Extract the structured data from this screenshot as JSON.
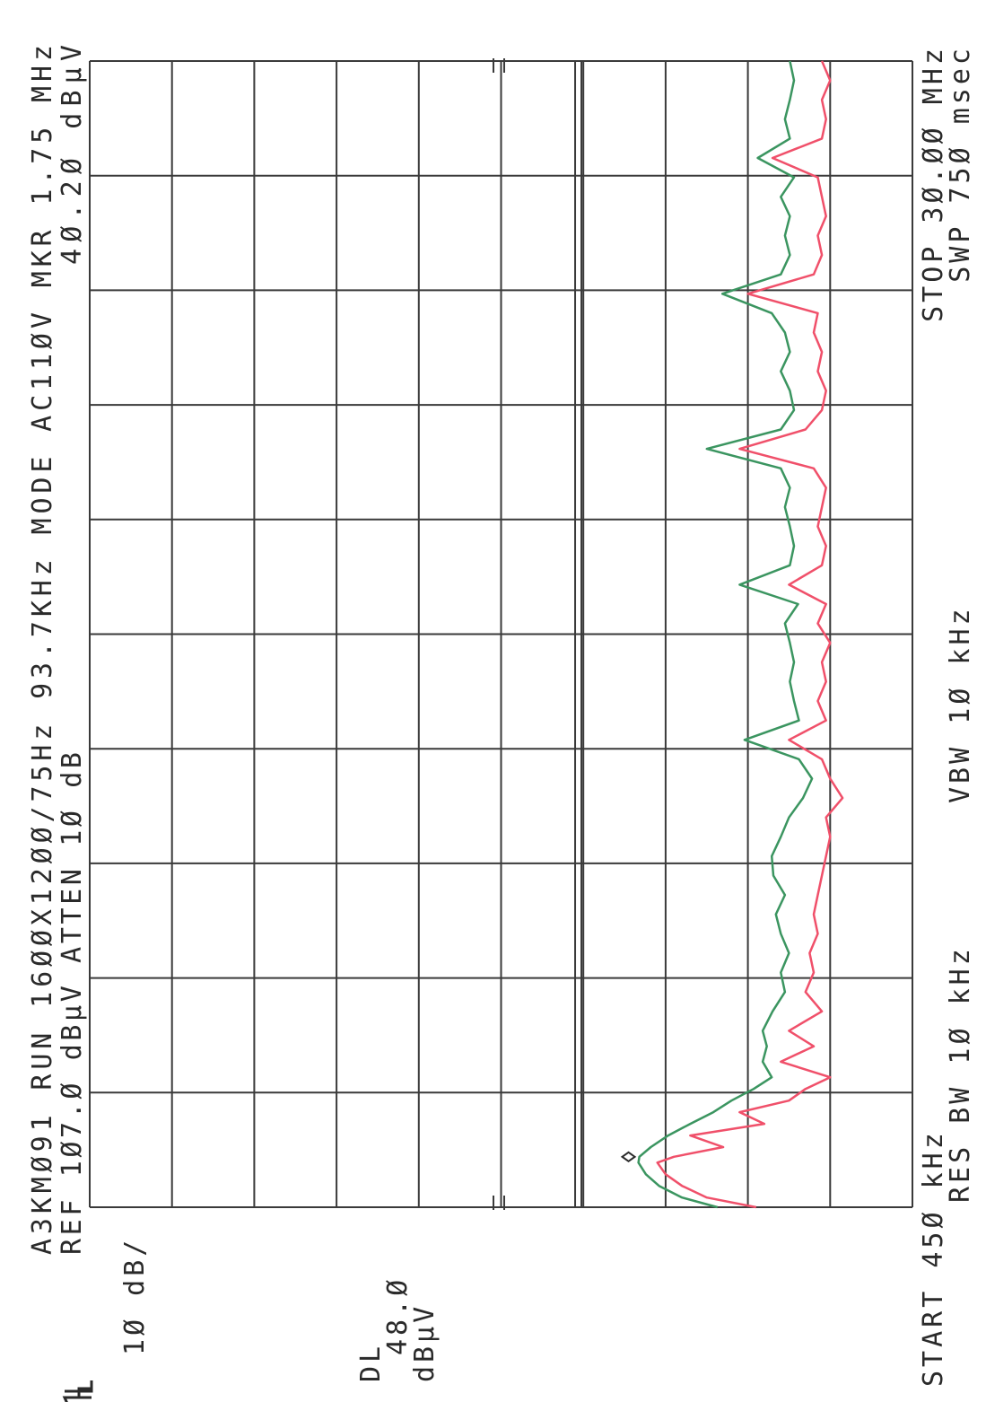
{
  "chart_data": {
    "type": "line",
    "title": "A3KMØ91 RUN 16ØØX12ØØ/75Hz 93.7KHz MODE AC11ØV MKR 1.75 MHz",
    "subtitle": "REF 1Ø7.Ø dBµV ATTEN 1Ø dB",
    "marker_label": "4Ø.2Ø dBµV",
    "annotations": [
      "1Ø dB/",
      "DL",
      "48.Ø",
      "dBµV",
      "START 45Ø kHz",
      "STOP 3Ø.ØØ MHz",
      "RES BW 1Ø kHz",
      "VBW 1Ø kHz",
      "SWP 75Ø msec"
    ],
    "xlim": [
      0.45,
      30
    ],
    "ylim": [
      7,
      107
    ],
    "grid": {
      "x_divisions": 10,
      "y_divisions": 10
    },
    "display_line": 48,
    "marker": {
      "x": 1.75,
      "y": 40.2
    },
    "x": [
      0.45,
      0.7,
      1.0,
      1.3,
      1.6,
      1.75,
      2.0,
      2.3,
      2.6,
      2.9,
      3.2,
      3.5,
      3.8,
      4.2,
      4.6,
      5.0,
      5.5,
      6.0,
      6.5,
      7.0,
      7.5,
      8.0,
      8.5,
      9.0,
      9.5,
      10.0,
      10.5,
      11.0,
      11.5,
      12.0,
      12.5,
      13.0,
      13.5,
      14.0,
      14.5,
      15.0,
      15.5,
      16.0,
      16.5,
      17.0,
      17.5,
      18.0,
      18.5,
      19.0,
      19.5,
      20.0,
      20.5,
      21.0,
      21.5,
      22.0,
      22.5,
      23.0,
      23.5,
      24.0,
      24.5,
      25.0,
      25.5,
      26.0,
      26.5,
      27.0,
      27.5,
      28.0,
      28.5,
      29.0,
      29.5,
      30.0
    ],
    "series": [
      {
        "color": "#3b9560",
        "values": [
          30.7,
          35,
          37.8,
          39.4,
          40.3,
          40.2,
          38.8,
          36.7,
          34,
          31.2,
          29,
          26.3,
          24.1,
          25.2,
          24.7,
          25.2,
          24,
          22.5,
          23,
          22,
          23,
          23.6,
          22.5,
          23.9,
          24.1,
          23,
          22,
          20.3,
          19.2,
          20.8,
          27.4,
          20.8,
          21.4,
          21.9,
          21.4,
          21.9,
          22.5,
          20.9,
          28,
          21.9,
          21.4,
          21.9,
          22.5,
          21.9,
          23,
          32,
          23,
          21.4,
          21.9,
          23,
          21.9,
          22.5,
          24.1,
          30.1,
          23,
          21.9,
          22.5,
          21.9,
          23,
          21.4,
          25.8,
          21.9,
          22.5,
          21.9,
          21.4,
          21.9
        ]
      },
      {
        "color": "#f0506a",
        "values": [
          26,
          32,
          35,
          37,
          38,
          36,
          30,
          34,
          25,
          28,
          22,
          20,
          17,
          23,
          19,
          22,
          18,
          20,
          19,
          19.5,
          18.5,
          19,
          18.5,
          18,
          17.5,
          17,
          17.5,
          15.5,
          17,
          18,
          22,
          17.5,
          18.5,
          17.5,
          18,
          17,
          18.5,
          17.5,
          22,
          18,
          17.5,
          18.5,
          18,
          17.5,
          19,
          28,
          20,
          18,
          17.5,
          18.5,
          18,
          19,
          18.5,
          27,
          19,
          18,
          18.5,
          17.5,
          18,
          18.5,
          24,
          18,
          17.5,
          18,
          17,
          18
        ]
      }
    ]
  }
}
